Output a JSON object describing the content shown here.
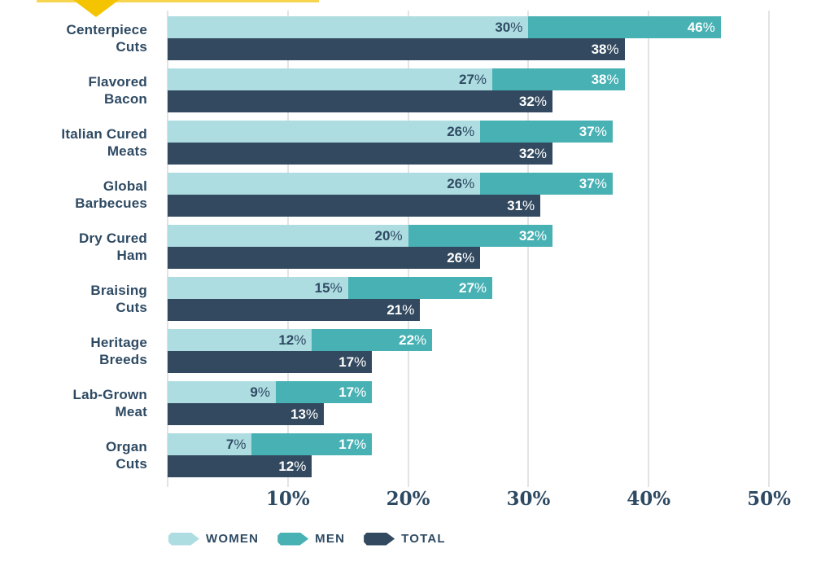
{
  "callout": {
    "line_color": "#f8d54e",
    "tail_color": "#f5c400"
  },
  "chart_data": {
    "type": "bar",
    "orientation": "horizontal",
    "title": "",
    "xlabel": "",
    "ylabel": "",
    "xlim": [
      0,
      50
    ],
    "grid": true,
    "legend_position": "bottom",
    "categories": [
      "Centerpiece Cuts",
      "Flavored Bacon",
      "Italian Cured Meats",
      "Global Barbecues",
      "Dry Cured Ham",
      "Braising Cuts",
      "Heritage Breeds",
      "Lab-Grown Meat",
      "Organ Cuts"
    ],
    "category_lines": [
      [
        "Centerpiece",
        "Cuts"
      ],
      [
        "Flavored",
        "Bacon"
      ],
      [
        "Italian Cured",
        "Meats"
      ],
      [
        "Global",
        "Barbecues"
      ],
      [
        "Dry Cured",
        "Ham"
      ],
      [
        "Braising",
        "Cuts"
      ],
      [
        "Heritage",
        "Breeds"
      ],
      [
        "Lab-Grown",
        "Meat"
      ],
      [
        "Organ",
        "Cuts"
      ]
    ],
    "series": [
      {
        "name": "WOMEN",
        "color": "#aedde1",
        "label_color": "#2e4a63",
        "values": [
          30,
          27,
          26,
          26,
          20,
          15,
          12,
          9,
          7
        ]
      },
      {
        "name": "MEN",
        "color": "#48b1b4",
        "label_color": "#ffffff",
        "values": [
          46,
          38,
          37,
          37,
          32,
          27,
          22,
          17,
          17
        ]
      },
      {
        "name": "TOTAL",
        "color": "#32495f",
        "label_color": "#ffffff",
        "values": [
          38,
          32,
          32,
          31,
          26,
          21,
          17,
          13,
          12
        ]
      }
    ],
    "x_tick_values": [
      10,
      20,
      30,
      40,
      50
    ],
    "x_tick_labels": [
      "10%",
      "20%",
      "30%",
      "40%",
      "50%"
    ],
    "value_suffix": "%",
    "text_color": "#2e4a63",
    "grid_color": "#e3e3e3"
  }
}
